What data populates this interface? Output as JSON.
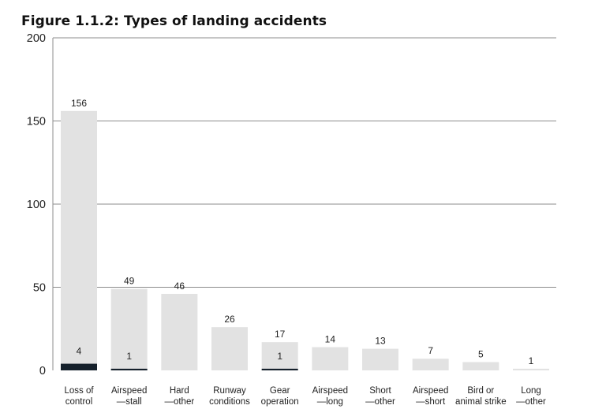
{
  "figure_title": "Figure 1.1.2: Types of landing accidents",
  "colors": {
    "total_bar": "#e2e2e2",
    "highlight_bar": "#15202b",
    "gridline": "#8c8c8c",
    "text": "#222222"
  },
  "chart_data": {
    "type": "bar",
    "title": "Figure 1.1.2: Types of landing accidents",
    "xlabel": "",
    "ylabel": "",
    "ylim": [
      0,
      200
    ],
    "yticks": [
      0,
      50,
      100,
      150,
      200
    ],
    "grid": true,
    "categories": [
      [
        "Loss of",
        "control"
      ],
      [
        "Airspeed",
        "—stall"
      ],
      [
        "Hard",
        "—other"
      ],
      [
        "Runway",
        "conditions"
      ],
      [
        "Gear",
        "operation"
      ],
      [
        "Airspeed",
        "—long"
      ],
      [
        "Short",
        "—other"
      ],
      [
        "Airspeed",
        "—short"
      ],
      [
        "Bird or",
        "animal strike"
      ],
      [
        "Long",
        "—other"
      ]
    ],
    "series": [
      {
        "name": "Total",
        "values": [
          156,
          49,
          46,
          26,
          17,
          14,
          13,
          7,
          5,
          1
        ]
      },
      {
        "name": "Highlighted subset",
        "values": [
          4,
          1,
          null,
          null,
          1,
          null,
          null,
          null,
          null,
          null
        ]
      }
    ]
  }
}
